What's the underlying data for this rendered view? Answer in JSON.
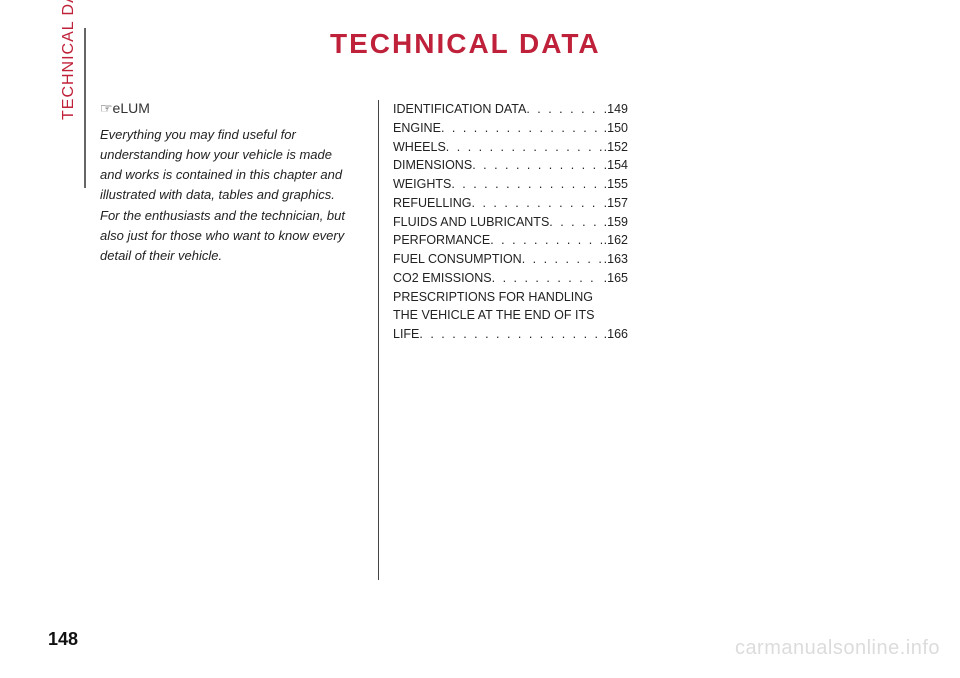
{
  "page": {
    "number": "148",
    "side_label": "TECHNICAL DATA",
    "title": "TECHNICAL DATA",
    "watermark": "carmanualsonline.info"
  },
  "intro": {
    "icon_text": "☞eLUM",
    "body": "Everything you may find useful for understanding how your vehicle is made and works is contained in this chapter and illustrated with data, tables and graphics. For the enthusiasts and the technician, but also just for those who want to know every detail of their vehicle."
  },
  "toc": {
    "items": [
      {
        "label": "IDENTIFICATION DATA",
        "page": ".149"
      },
      {
        "label": "ENGINE",
        "page": ".150"
      },
      {
        "label": "WHEELS",
        "page": ".152"
      },
      {
        "label": "DIMENSIONS",
        "page": ".154"
      },
      {
        "label": "WEIGHTS",
        "page": ".155"
      },
      {
        "label": "REFUELLING",
        "page": ".157"
      },
      {
        "label": "FLUIDS AND LUBRICANTS",
        "page": ".159"
      },
      {
        "label": "PERFORMANCE",
        "page": ".162"
      },
      {
        "label": "FUEL CONSUMPTION",
        "page": ".163"
      },
      {
        "label": "CO2 EMISSIONS",
        "page": ".165"
      }
    ],
    "multi": {
      "line1": "PRESCRIPTIONS FOR HANDLING",
      "line2": "THE VEHICLE AT THE END OF ITS",
      "last_label": "LIFE",
      "page": ".166"
    }
  },
  "colors": {
    "accent": "#c0213a",
    "text": "#222222",
    "rule": "#666666",
    "watermark": "#dcdcdc",
    "background": "#ffffff"
  },
  "typography": {
    "title_fontsize": 28,
    "body_fontsize": 13,
    "toc_fontsize": 12.5,
    "page_num_fontsize": 18
  }
}
